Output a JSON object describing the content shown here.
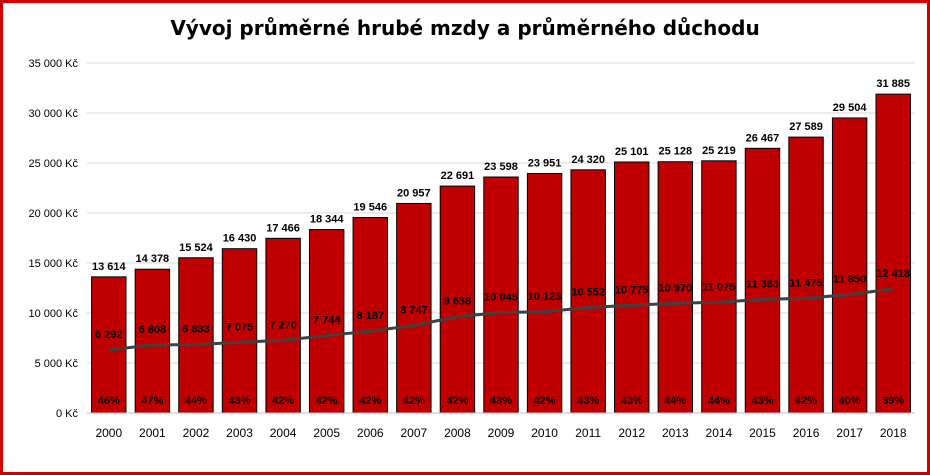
{
  "chart_data": {
    "type": "bar",
    "title": "Vývoj průměrné hrubé mzdy a průměrného důchodu",
    "categories": [
      "2000",
      "2001",
      "2002",
      "2003",
      "2004",
      "2005",
      "2006",
      "2007",
      "2008",
      "2009",
      "2010",
      "2011",
      "2012",
      "2013",
      "2014",
      "2015",
      "2016",
      "2017",
      "2018"
    ],
    "series": [
      {
        "type": "bar",
        "color": "#c00000",
        "values": [
          13614,
          14378,
          15524,
          16430,
          17466,
          18344,
          19546,
          20957,
          22691,
          23598,
          23951,
          24320,
          25101,
          25128,
          25219,
          26467,
          27589,
          29504,
          31885
        ],
        "labels": [
          "13 614",
          "14 378",
          "15 524",
          "16 430",
          "17 466",
          "18 344",
          "19 546",
          "20 957",
          "22 691",
          "23 598",
          "23 951",
          "24 320",
          "25 101",
          "25 128",
          "25 219",
          "26 467",
          "27 589",
          "29 504",
          "31 885"
        ]
      },
      {
        "type": "line",
        "color": "#404040",
        "values": [
          6292,
          6808,
          6833,
          7075,
          7270,
          7744,
          8187,
          8747,
          9638,
          10045,
          10123,
          10552,
          10775,
          10970,
          11075,
          11363,
          11475,
          11850,
          12418
        ],
        "labels": [
          "6 292",
          "6 808",
          "6 833",
          "7 075",
          "7 270",
          "7 744",
          "8 187",
          "8 747",
          "9 638",
          "10 045",
          "10 123",
          "10 552",
          "10 775",
          "10 970",
          "11 075",
          "11 363",
          "11 475",
          "11 850",
          "12 418"
        ]
      }
    ],
    "ratio_labels": [
      "46%",
      "47%",
      "44%",
      "43%",
      "42%",
      "42%",
      "42%",
      "42%",
      "42%",
      "43%",
      "42%",
      "43%",
      "43%",
      "44%",
      "44%",
      "43%",
      "42%",
      "40%",
      "39%"
    ],
    "ylim": [
      0,
      35000
    ],
    "yticks": [
      0,
      5000,
      10000,
      15000,
      20000,
      25000,
      30000,
      35000
    ],
    "ytick_labels": [
      "0 Kč",
      "5 000 Kč",
      "10 000 Kč",
      "15 000 Kč",
      "20 000 Kč",
      "25 000 Kč",
      "30 000 Kč",
      "35 000 Kč"
    ],
    "grid": true,
    "legend": "none"
  }
}
